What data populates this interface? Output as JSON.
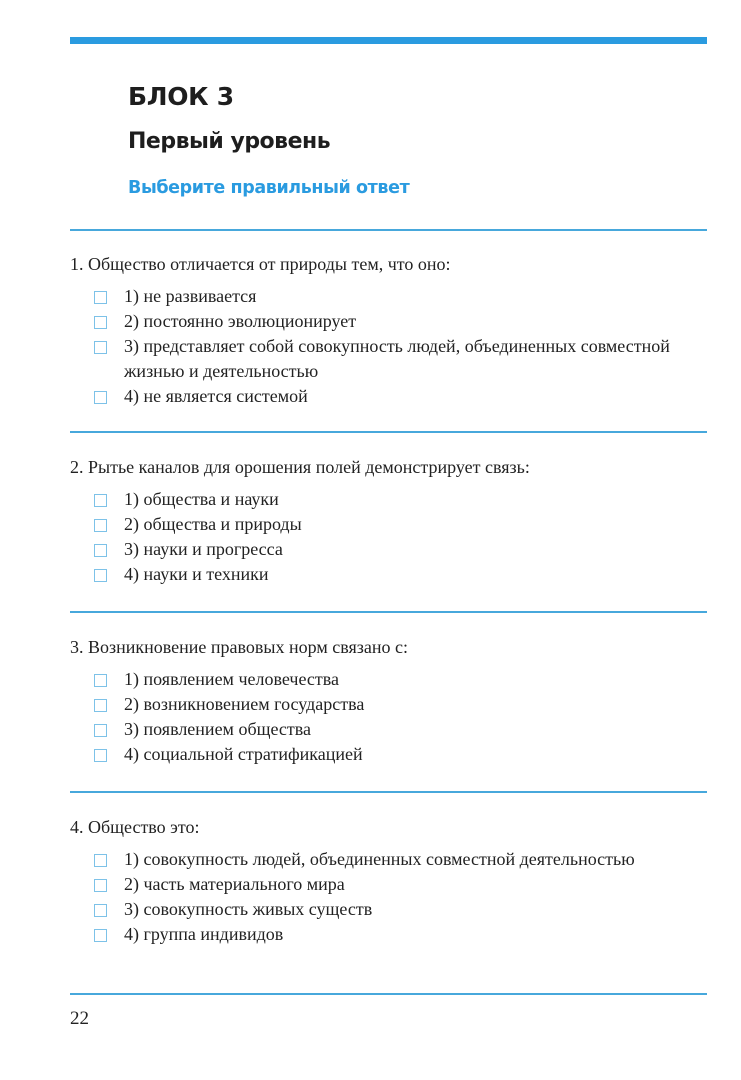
{
  "header": {
    "block": "БЛОК 3",
    "level": "Первый уровень",
    "instruction": "Выберите правильный ответ"
  },
  "colors": {
    "accent": "#2a9be0",
    "rule": "#47a8dc",
    "checkbox": "#7dc2e8"
  },
  "questions": [
    {
      "text": "1. Общество отличается от природы тем, что оно:",
      "options": [
        "1) не развивается",
        "2) постоянно эволюционирует",
        "3) представляет собой совокупность людей, объединенных совместной жизнью и деятельностью",
        "4) не является системой"
      ]
    },
    {
      "text": "2. Рытье каналов для орошения полей демонстрирует связь:",
      "options": [
        "1) общества и науки",
        "2) общества и природы",
        "3) науки и прогресса",
        "4) науки и техники"
      ]
    },
    {
      "text": "3. Возникновение правовых норм связано с:",
      "options": [
        "1) появлением человечества",
        "2) возникновением государства",
        "3) появлением общества",
        "4) социальной стратификацией"
      ]
    },
    {
      "text": "4. Общество это:",
      "options": [
        "1) совокупность людей, объединенных совместной деятельностью",
        "2) часть материального мира",
        "3) совокупность живых существ",
        "4) группа индивидов"
      ]
    }
  ],
  "page_number": "22"
}
